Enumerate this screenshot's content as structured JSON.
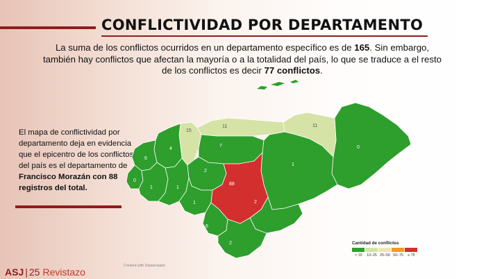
{
  "title": "CONFLICTIVIDAD POR DEPARTAMENTO",
  "intro": {
    "part1": "La suma de los conflictos ocurridos en un departamento específico es de ",
    "bold1": "165",
    "part2": ". Sin embargo, también hay conflictos que afectan la mayoría o a la totalidad del país, lo que se traduce a el resto de los conflictos es decir ",
    "bold2": "77 conflictos",
    "part3": "."
  },
  "side_text": {
    "part1": "El mapa de conflictividad por departamento deja en evidencia que el epicentro de los conflictos del país es el departamento de ",
    "bold": "Francisco Morazán con 88 registros del total."
  },
  "map": {
    "departments": [
      {
        "id": "copan",
        "value": "6"
      },
      {
        "id": "ocotepeque",
        "value": "0"
      },
      {
        "id": "lempira",
        "value": "1"
      },
      {
        "id": "intibuca",
        "value": "1"
      },
      {
        "id": "santa-barbara",
        "value": "4"
      },
      {
        "id": "cortes",
        "value": "15"
      },
      {
        "id": "atlantida",
        "value": "11"
      },
      {
        "id": "colon",
        "value": "11"
      },
      {
        "id": "yoro",
        "value": "7"
      },
      {
        "id": "comayagua",
        "value": "2"
      },
      {
        "id": "la-paz",
        "value": "1"
      },
      {
        "id": "francisco-morazan",
        "value": "88"
      },
      {
        "id": "olancho",
        "value": "1"
      },
      {
        "id": "el-paraiso",
        "value": "2"
      },
      {
        "id": "valle",
        "value": "6"
      },
      {
        "id": "choluteca",
        "value": "2"
      },
      {
        "id": "gracias-a-dios",
        "value": "0"
      }
    ],
    "colors": {
      "lt10": "#2e9e2c",
      "10to25": "#d5e3a6",
      "gte75": "#d32f2f"
    }
  },
  "legend": {
    "title": "Cantidad de conflictos",
    "items": [
      {
        "label": "< 10",
        "color": "#2e9e2c"
      },
      {
        "label": "10–25",
        "color": "#d5e3a6"
      },
      {
        "label": "25–50",
        "color": "#efe6b0"
      },
      {
        "label": "50–75",
        "color": "#f39a1f"
      },
      {
        "label": "≥ 75",
        "color": "#d32f2f"
      }
    ]
  },
  "credit": "Created with Datawrapper",
  "logo": {
    "asj": "ASJ",
    "num": "25",
    "brand": "Revistazo"
  }
}
